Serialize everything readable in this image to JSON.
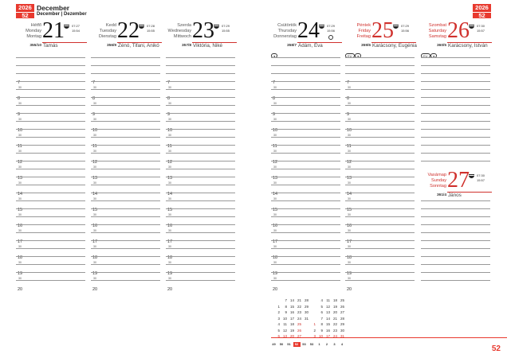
{
  "header": {
    "year": "2026",
    "week": "52",
    "month": "December",
    "month_sub": "December | Dezember"
  },
  "days": [
    {
      "names": [
        "Hétfő",
        "Monday",
        "Montag"
      ],
      "num": "21",
      "sunrise": "07:27",
      "sunset": "15:54",
      "daynum": "355/10",
      "nameday": "Tamás",
      "red": false,
      "icons": [],
      "moon": false
    },
    {
      "names": [
        "Kedd",
        "Tuesday",
        "Dienstag"
      ],
      "num": "22",
      "sunrise": "07:28",
      "sunset": "15:55",
      "daynum": "356/9",
      "nameday": "Zénó, Tifani, Anikó",
      "red": false,
      "icons": [],
      "moon": false
    },
    {
      "names": [
        "Szerda",
        "Wednesday",
        "Mittwoch"
      ],
      "num": "23",
      "sunrise": "07:29",
      "sunset": "15:55",
      "daynum": "357/8",
      "nameday": "Viktória, Niké",
      "red": false,
      "icons": [],
      "moon": false
    },
    {
      "names": [
        "Csütörtök",
        "Thursday",
        "Donnerstag"
      ],
      "num": "24",
      "sunrise": "07:29",
      "sunset": "15:56",
      "daynum": "358/7",
      "nameday": "Ádám, Éva",
      "red": false,
      "icons": [
        "●"
      ],
      "moon": true
    },
    {
      "names": [
        "Péntek",
        "Friday",
        "Freitag"
      ],
      "num": "25",
      "sunrise": "07:29",
      "sunset": "15:56",
      "daynum": "359/6",
      "nameday": "Karácsony, Eugénia",
      "red": true,
      "icons": [
        "EU",
        "●"
      ],
      "moon": false
    },
    {
      "names": [
        "Szombat",
        "Saturday",
        "Samstag"
      ],
      "num": "26",
      "sunrise": "07:30",
      "sunset": "15:57",
      "daynum": "360/5",
      "nameday": "Karácsony, István",
      "red": true,
      "icons": [
        "EU",
        "●"
      ],
      "moon": false
    }
  ],
  "sunday": {
    "names": [
      "Vasárnap",
      "Sunday",
      "Sonntag"
    ],
    "num": "27",
    "sunrise": "07:30",
    "sunset": "15:57",
    "daynum": "361/4",
    "nameday": "János",
    "red": true
  },
  "hours": [
    "7",
    "8",
    "9",
    "10",
    "11",
    "12",
    "13",
    "14",
    "15",
    "16",
    "17",
    "18",
    "19",
    "20"
  ],
  "half_label": "30",
  "mini_calendar": {
    "december": [
      [
        "",
        "1",
        "2",
        "3",
        "4",
        "5",
        "6"
      ],
      [
        "7",
        "8",
        "9",
        "10",
        "11",
        "12",
        "13"
      ],
      [
        "14",
        "15",
        "16",
        "17",
        "18",
        "19",
        "20"
      ],
      [
        "21",
        "22",
        "23",
        "24",
        "25",
        "26",
        "27"
      ],
      [
        "28",
        "29",
        "30",
        "31",
        "",
        "",
        ""
      ]
    ],
    "january": [
      [
        "",
        "",
        "",
        "",
        "1",
        "2",
        "3"
      ],
      [
        "4",
        "5",
        "6",
        "7",
        "8",
        "9",
        "10"
      ],
      [
        "11",
        "12",
        "13",
        "14",
        "15",
        "16",
        "17"
      ],
      [
        "18",
        "19",
        "20",
        "21",
        "22",
        "23",
        "24"
      ],
      [
        "25",
        "26",
        "27",
        "28",
        "29",
        "30",
        "31"
      ]
    ],
    "red_dec": [
      "6",
      "13",
      "20",
      "25",
      "26",
      "27"
    ],
    "red_jan": [
      "1",
      "3",
      "10",
      "17",
      "24",
      "31"
    ],
    "weeks": [
      "49",
      "50",
      "51",
      "52",
      "53",
      "53",
      "1",
      "2",
      "3",
      "4"
    ],
    "current_week": "52"
  },
  "page_number": "52"
}
